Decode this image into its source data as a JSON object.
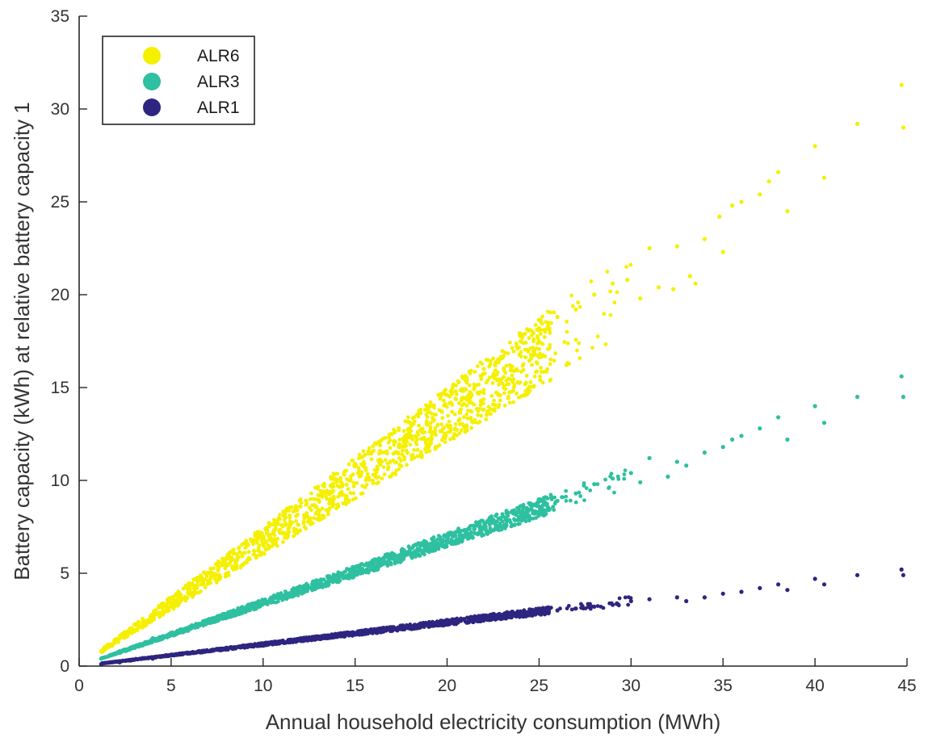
{
  "chart_data": {
    "type": "scatter",
    "title": "",
    "xlabel": "Annual household electricity consumption (MWh)",
    "ylabel": "Battery capacity (kWh) at relative battery capacity 1",
    "xlim": [
      0,
      45
    ],
    "ylim": [
      0,
      35
    ],
    "xticks": [
      0,
      5,
      10,
      15,
      20,
      25,
      30,
      35,
      40,
      45
    ],
    "yticks": [
      0,
      5,
      10,
      15,
      20,
      25,
      30,
      35
    ],
    "grid": false,
    "legend_position": "top-left",
    "series": [
      {
        "name": "ALR6",
        "color": "#f5f000",
        "trend": {
          "slope_low": 0.6,
          "slope_high": 0.75,
          "x_range": [
            1.2,
            30
          ],
          "note_outliers": true
        },
        "points": [
          [
            1.2,
            0.8
          ],
          [
            2.2,
            1.5
          ],
          [
            2.8,
            1.8
          ],
          [
            3.5,
            2.3
          ],
          [
            4.2,
            2.8
          ],
          [
            5.0,
            3.3
          ],
          [
            6.0,
            4.0
          ],
          [
            7.0,
            4.6
          ],
          [
            8.0,
            5.5
          ],
          [
            9.0,
            6.1
          ],
          [
            10.0,
            6.9
          ],
          [
            11.0,
            7.6
          ],
          [
            12.0,
            8.6
          ],
          [
            13.0,
            9.2
          ],
          [
            14.0,
            10.0
          ],
          [
            15.0,
            10.9
          ],
          [
            16.0,
            11.6
          ],
          [
            17.0,
            12.5
          ],
          [
            18.0,
            13.1
          ],
          [
            19.0,
            14.0
          ],
          [
            20.0,
            14.6
          ],
          [
            21.0,
            15.4
          ],
          [
            22.0,
            16.0
          ],
          [
            23.0,
            16.6
          ],
          [
            24.0,
            17.5
          ],
          [
            25.0,
            18.2
          ],
          [
            26.0,
            18.8
          ],
          [
            27.0,
            19.2
          ],
          [
            28.0,
            20.0
          ],
          [
            29.0,
            20.6
          ],
          [
            29.8,
            20.8
          ],
          [
            30.5,
            19.8
          ],
          [
            31.0,
            22.5
          ],
          [
            31.5,
            20.4
          ],
          [
            32.3,
            20.3
          ],
          [
            32.5,
            22.6
          ],
          [
            33.2,
            21.0
          ],
          [
            33.5,
            20.6
          ],
          [
            34.0,
            23.0
          ],
          [
            34.8,
            24.2
          ],
          [
            35.0,
            22.3
          ],
          [
            35.5,
            24.8
          ],
          [
            36.0,
            25.0
          ],
          [
            37.0,
            25.4
          ],
          [
            37.5,
            26.1
          ],
          [
            38.0,
            26.6
          ],
          [
            38.5,
            24.5
          ],
          [
            40.0,
            28.0
          ],
          [
            40.5,
            26.3
          ],
          [
            42.3,
            29.2
          ],
          [
            44.7,
            31.3
          ],
          [
            44.8,
            29.0
          ]
        ]
      },
      {
        "name": "ALR3",
        "color": "#2ec0a0",
        "trend": {
          "slope_low": 0.32,
          "slope_high": 0.36,
          "x_range": [
            1.2,
            30
          ],
          "note_outliers": true
        },
        "points": [
          [
            1.2,
            0.4
          ],
          [
            2.2,
            0.8
          ],
          [
            2.8,
            1.0
          ],
          [
            4.0,
            1.5
          ],
          [
            5.0,
            1.8
          ],
          [
            6.0,
            2.1
          ],
          [
            7.0,
            2.4
          ],
          [
            8.0,
            2.7
          ],
          [
            9.0,
            3.0
          ],
          [
            10.0,
            3.4
          ],
          [
            11.0,
            3.7
          ],
          [
            12.0,
            4.0
          ],
          [
            13.0,
            4.4
          ],
          [
            14.0,
            4.7
          ],
          [
            15.0,
            5.0
          ],
          [
            16.0,
            5.4
          ],
          [
            17.0,
            5.8
          ],
          [
            18.0,
            6.1
          ],
          [
            19.0,
            6.5
          ],
          [
            20.0,
            6.8
          ],
          [
            21.0,
            7.1
          ],
          [
            22.0,
            7.5
          ],
          [
            23.0,
            7.8
          ],
          [
            24.0,
            8.2
          ],
          [
            25.0,
            8.6
          ],
          [
            26.0,
            8.9
          ],
          [
            27.0,
            9.3
          ],
          [
            28.0,
            9.8
          ],
          [
            29.0,
            10.1
          ],
          [
            30.0,
            10.4
          ],
          [
            30.5,
            9.9
          ],
          [
            31.0,
            11.2
          ],
          [
            32.0,
            10.2
          ],
          [
            32.5,
            11.0
          ],
          [
            33.0,
            10.8
          ],
          [
            34.0,
            11.5
          ],
          [
            35.0,
            11.8
          ],
          [
            35.5,
            12.2
          ],
          [
            36.0,
            12.4
          ],
          [
            37.0,
            12.8
          ],
          [
            38.0,
            13.4
          ],
          [
            38.5,
            12.2
          ],
          [
            40.0,
            14.0
          ],
          [
            40.5,
            13.1
          ],
          [
            42.3,
            14.5
          ],
          [
            44.7,
            15.6
          ],
          [
            44.8,
            14.5
          ]
        ]
      },
      {
        "name": "ALR1",
        "color": "#2e2580",
        "trend": {
          "slope_low": 0.11,
          "slope_high": 0.125,
          "x_range": [
            1.2,
            30
          ],
          "note_outliers": true
        },
        "points": [
          [
            1.2,
            0.1
          ],
          [
            2.2,
            0.2
          ],
          [
            2.8,
            0.3
          ],
          [
            4.0,
            0.4
          ],
          [
            5.0,
            0.6
          ],
          [
            6.0,
            0.7
          ],
          [
            7.0,
            0.8
          ],
          [
            8.0,
            0.9
          ],
          [
            9.0,
            1.0
          ],
          [
            10.0,
            1.1
          ],
          [
            11.0,
            1.3
          ],
          [
            12.0,
            1.4
          ],
          [
            13.0,
            1.5
          ],
          [
            14.0,
            1.6
          ],
          [
            15.0,
            1.7
          ],
          [
            16.0,
            1.9
          ],
          [
            17.0,
            2.0
          ],
          [
            18.0,
            2.1
          ],
          [
            19.0,
            2.2
          ],
          [
            20.0,
            2.3
          ],
          [
            21.0,
            2.4
          ],
          [
            22.0,
            2.5
          ],
          [
            23.0,
            2.6
          ],
          [
            24.0,
            2.8
          ],
          [
            25.0,
            2.9
          ],
          [
            26.0,
            3.0
          ],
          [
            27.0,
            3.1
          ],
          [
            28.0,
            3.2
          ],
          [
            29.0,
            3.3
          ],
          [
            30.0,
            3.5
          ],
          [
            31.0,
            3.6
          ],
          [
            32.5,
            3.7
          ],
          [
            33.0,
            3.5
          ],
          [
            34.0,
            3.7
          ],
          [
            35.0,
            3.9
          ],
          [
            36.0,
            4.0
          ],
          [
            37.0,
            4.2
          ],
          [
            38.0,
            4.4
          ],
          [
            38.5,
            4.1
          ],
          [
            40.0,
            4.7
          ],
          [
            40.5,
            4.4
          ],
          [
            42.3,
            4.9
          ],
          [
            44.7,
            5.2
          ],
          [
            44.8,
            4.9
          ]
        ]
      }
    ]
  }
}
